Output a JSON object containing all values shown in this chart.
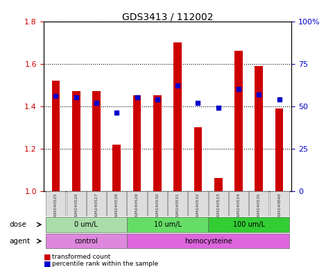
{
  "title": "GDS3413 / 112002",
  "samples": [
    "GSM240525",
    "GSM240526",
    "GSM240527",
    "GSM240528",
    "GSM240529",
    "GSM240530",
    "GSM240531",
    "GSM240532",
    "GSM240533",
    "GSM240534",
    "GSM240535",
    "GSM240848"
  ],
  "transformed_count": [
    1.52,
    1.47,
    1.47,
    1.22,
    1.45,
    1.45,
    1.7,
    1.3,
    1.06,
    1.66,
    1.59,
    1.39
  ],
  "percentile_rank": [
    56,
    55,
    52,
    46,
    55,
    54,
    62,
    52,
    49,
    60,
    57,
    54
  ],
  "bar_color": "#cc0000",
  "dot_color": "#0000cc",
  "ylim_left": [
    1.0,
    1.8
  ],
  "ylim_right": [
    0,
    100
  ],
  "yticks_left": [
    1.0,
    1.2,
    1.4,
    1.6,
    1.8
  ],
  "yticks_right": [
    0,
    25,
    50,
    75,
    100
  ],
  "ytick_labels_right": [
    "0",
    "25",
    "50",
    "75",
    "100%"
  ],
  "dose_groups": [
    {
      "label": "0 um/L",
      "start": 0,
      "end": 3,
      "color": "#aaddaa"
    },
    {
      "label": "10 um/L",
      "start": 4,
      "end": 7,
      "color": "#66dd66"
    },
    {
      "label": "100 um/L",
      "start": 8,
      "end": 11,
      "color": "#33cc33"
    }
  ],
  "agent_groups": [
    {
      "label": "control",
      "start": 0,
      "end": 3,
      "color": "#dd88dd"
    },
    {
      "label": "homocysteine",
      "start": 4,
      "end": 11,
      "color": "#dd66dd"
    }
  ],
  "dose_label": "dose",
  "agent_label": "agent",
  "legend_items": [
    {
      "label": "transformed count",
      "color": "#cc0000"
    },
    {
      "label": "percentile rank within the sample",
      "color": "#0000cc"
    }
  ],
  "bar_width": 0.4,
  "background_color": "#ffffff",
  "plot_bg_color": "#ffffff",
  "tick_color_left": "#cc0000",
  "tick_color_right": "#0000cc",
  "label_bg": "#dddddd"
}
